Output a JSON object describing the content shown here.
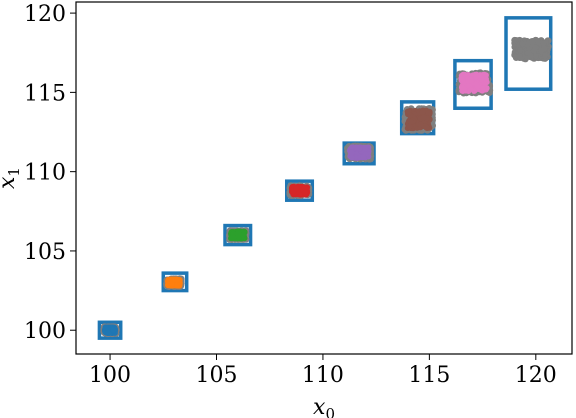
{
  "chart_data": {
    "type": "scatter",
    "xlabel": "x0",
    "ylabel": "x1",
    "xlim": [
      98.4,
      121.7
    ],
    "ylim": [
      98.5,
      120.7
    ],
    "xticks": [
      100,
      105,
      110,
      115,
      120
    ],
    "yticks": [
      100,
      105,
      110,
      115,
      120
    ],
    "grid": false,
    "legend": "none",
    "box_color": "#1f77b4",
    "box_outline_color": "#7f7f7f",
    "series": [
      {
        "color": "#1f77b4",
        "cx": 100.0,
        "cy": 100.0,
        "spread_x": 0.3,
        "spread_y": 0.22,
        "box": [
          99.5,
          100.5,
          99.5,
          100.5
        ]
      },
      {
        "color": "#ff7f0e",
        "cx": 103.0,
        "cy": 103.0,
        "spread_x": 0.35,
        "spread_y": 0.25,
        "box": [
          102.5,
          103.6,
          102.5,
          103.6
        ]
      },
      {
        "color": "#2ca02c",
        "cx": 106.0,
        "cy": 106.0,
        "spread_x": 0.4,
        "spread_y": 0.28,
        "box": [
          105.4,
          106.6,
          105.4,
          106.6
        ]
      },
      {
        "color": "#d62728",
        "cx": 108.9,
        "cy": 108.8,
        "spread_x": 0.45,
        "spread_y": 0.32,
        "box": [
          108.3,
          109.5,
          108.2,
          109.4
        ]
      },
      {
        "color": "#9467bd",
        "cx": 111.7,
        "cy": 111.2,
        "spread_x": 0.55,
        "spread_y": 0.42,
        "box": [
          111.0,
          112.4,
          110.5,
          111.8
        ]
      },
      {
        "color": "#8c564b",
        "cx": 114.5,
        "cy": 113.3,
        "spread_x": 0.65,
        "spread_y": 0.7,
        "box": [
          113.7,
          115.2,
          112.4,
          114.4
        ]
      },
      {
        "color": "#e377c2",
        "cx": 117.1,
        "cy": 115.6,
        "spread_x": 0.75,
        "spread_y": 0.65,
        "box": [
          116.2,
          117.9,
          114.0,
          117.0
        ]
      },
      {
        "color": "#7f7f7f",
        "cx": 119.8,
        "cy": 117.7,
        "spread_x": 0.8,
        "spread_y": 0.6,
        "box": [
          118.6,
          120.7,
          115.2,
          119.7
        ]
      }
    ]
  }
}
